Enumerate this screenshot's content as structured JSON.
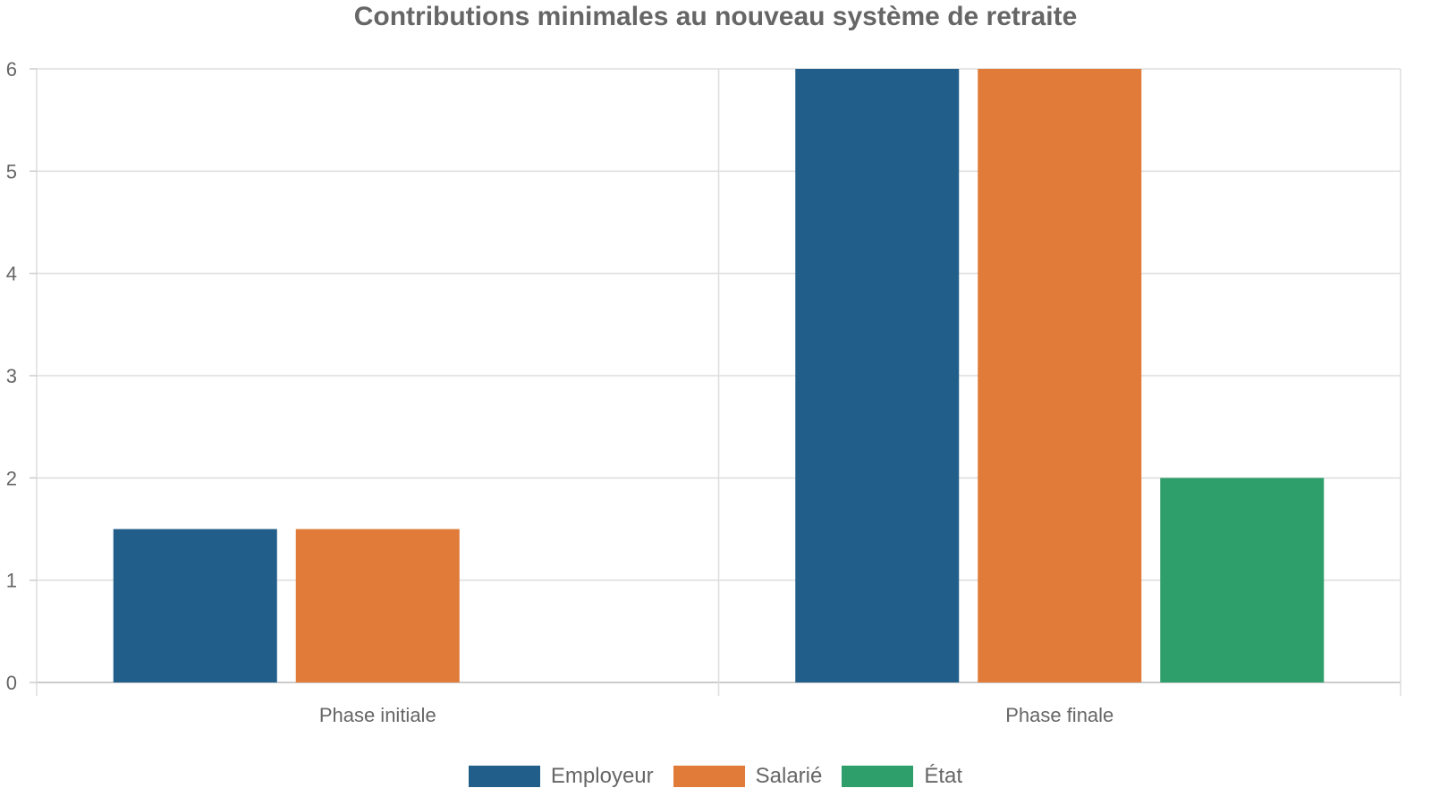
{
  "chart_data": {
    "type": "bar",
    "title": "Contributions minimales au nouveau système de retraite",
    "categories": [
      "Phase initiale",
      "Phase finale"
    ],
    "series": [
      {
        "name": "Employeur",
        "values": [
          1.5,
          6
        ],
        "color": "#215e8a"
      },
      {
        "name": "Salarié",
        "values": [
          1.5,
          6
        ],
        "color": "#e07b39"
      },
      {
        "name": "État",
        "values": [
          0,
          2
        ],
        "color": "#2e9e6b"
      }
    ],
    "ylim": [
      0,
      6
    ],
    "yticks": [
      "0",
      "1",
      "2",
      "3",
      "4",
      "5",
      "6"
    ],
    "grid": true,
    "legend_position": "bottom"
  }
}
